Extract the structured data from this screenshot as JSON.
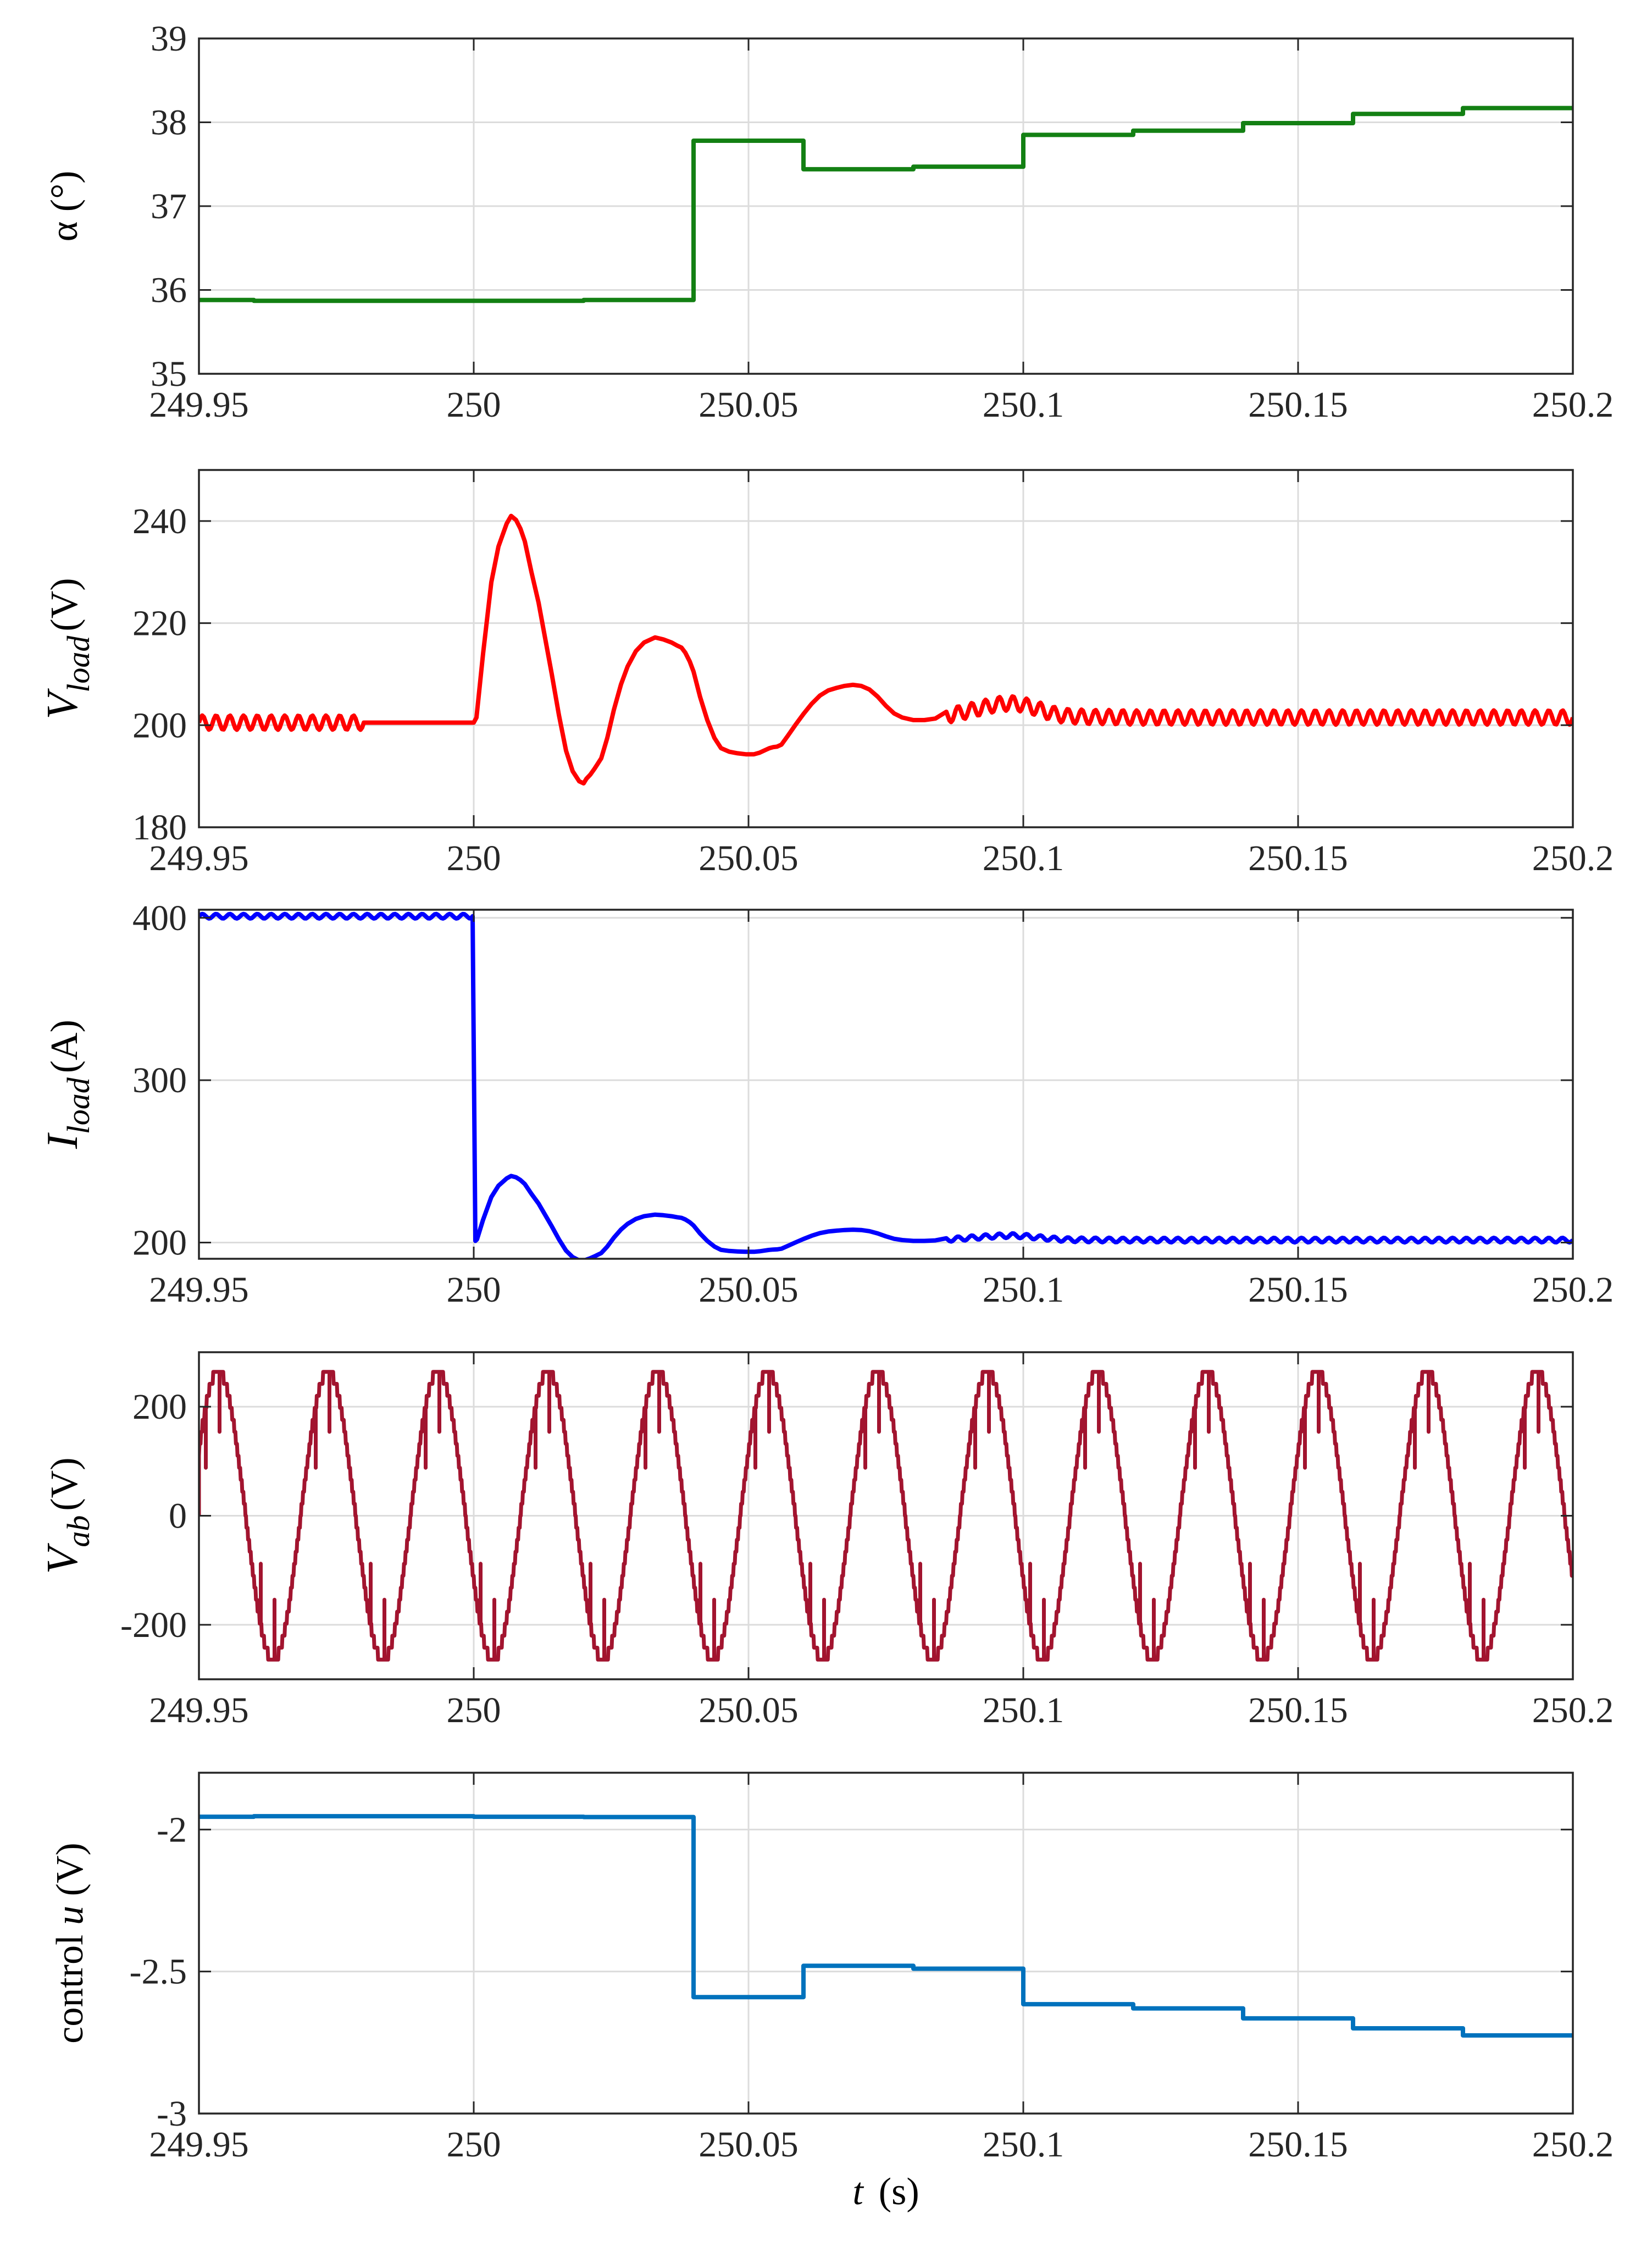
{
  "chart_data": [
    {
      "type": "line",
      "ylabel": "α (°)",
      "xlim": [
        249.95,
        250.2
      ],
      "ylim": [
        35,
        39
      ],
      "xticks": [
        249.95,
        250,
        250.05,
        250.1,
        250.15,
        250.2
      ],
      "xtick_labels": [
        "249.95",
        "250",
        "250.05",
        "250.1",
        "250.15",
        "250.2"
      ],
      "yticks": [
        35,
        36,
        37,
        38,
        39
      ],
      "ytick_labels": [
        "35",
        "36",
        "37",
        "38",
        "39"
      ],
      "grid": true,
      "series": [
        {
          "color": "#138013",
          "kind": "steps",
          "x": [
            249.95,
            249.96,
            249.98,
            250.0,
            250.02,
            250.04,
            250.06,
            250.08,
            250.1,
            250.12,
            250.14,
            250.16,
            250.18,
            250.2
          ],
          "values": [
            35.88,
            35.87,
            35.87,
            35.87,
            35.88,
            37.78,
            37.44,
            37.47,
            37.85,
            37.9,
            37.99,
            38.1,
            38.17,
            38.17
          ]
        }
      ]
    },
    {
      "type": "line",
      "ylabel": "V_load (V)",
      "ylabel_main": "V",
      "ylabel_sub": "load",
      "ylabel_unit": "(V)",
      "xlim": [
        249.95,
        250.2
      ],
      "ylim": [
        180,
        250
      ],
      "xticks": [
        249.95,
        250,
        250.05,
        250.1,
        250.15,
        250.2
      ],
      "xtick_labels": [
        "249.95",
        "250",
        "250.05",
        "250.1",
        "250.15",
        "250.2"
      ],
      "yticks": [
        180,
        200,
        220,
        240
      ],
      "ytick_labels": [
        "180",
        "200",
        "220",
        "240"
      ],
      "grid": true,
      "series": [
        {
          "color": "#ff0000",
          "kind": "line",
          "x": [
            249.95,
            249.98,
            250.0,
            250.0005,
            250.0017,
            250.0032,
            250.0045,
            250.0055,
            250.006,
            250.0068,
            250.0077,
            250.0085,
            250.0093,
            250.0105,
            250.0118,
            250.013,
            250.0142,
            250.0155,
            250.0168,
            250.018,
            250.0192,
            250.02,
            250.0205,
            250.0212,
            250.022,
            250.0226,
            250.0232,
            250.0243,
            250.0255,
            250.0268,
            250.028,
            250.0295,
            250.031,
            250.033,
            250.0345,
            250.036,
            250.037,
            250.0378,
            250.0385,
            250.0393,
            250.04,
            250.0412,
            250.0425,
            250.0438,
            250.045,
            250.0465,
            250.048,
            250.0495,
            250.051,
            250.052,
            250.053,
            250.0538,
            250.0545,
            250.0552,
            250.056,
            250.0572,
            250.0585,
            250.06,
            250.0615,
            250.063,
            250.0645,
            250.066,
            250.0675,
            250.069,
            250.0705,
            250.072,
            250.0735,
            250.075,
            250.0765,
            250.078,
            250.08,
            250.082,
            250.084,
            250.086,
            250.088,
            250.09,
            250.092,
            250.094,
            250.096,
            250.098,
            250.1,
            250.102,
            250.104,
            250.106,
            250.108,
            250.11,
            250.112,
            250.115,
            250.12,
            250.13,
            250.15,
            250.17,
            250.2
          ],
          "values": [
            200.5,
            200.5,
            200.5,
            201.5,
            214,
            228,
            235,
            238,
            239.5,
            241,
            240.2,
            238.5,
            236,
            230,
            224,
            217,
            210,
            202,
            195,
            191,
            189,
            188.6,
            189.5,
            190.3,
            191.5,
            192.5,
            193.5,
            197.5,
            203,
            208,
            211.5,
            214.5,
            216.2,
            217.2,
            216.8,
            216.2,
            215.6,
            215.2,
            214.2,
            212.5,
            210.5,
            205.5,
            201,
            197.5,
            195.5,
            194.8,
            194.5,
            194.3,
            194.3,
            194.6,
            195.1,
            195.5,
            195.7,
            195.8,
            196.2,
            198,
            200,
            202.2,
            204.2,
            205.8,
            206.8,
            207.3,
            207.7,
            207.9,
            207.7,
            207,
            205.6,
            203.8,
            202.3,
            201.5,
            201,
            201,
            201.3,
            201.8,
            202.3,
            202.8,
            203.3,
            203.8,
            204.2,
            204.3,
            204,
            203.4,
            202.7,
            202.1,
            201.8,
            201.7,
            201.6,
            201.6,
            201.5,
            201.5,
            201.5,
            201.5,
            201.5
          ]
        }
      ]
    },
    {
      "type": "line",
      "ylabel": "I_load (A)",
      "ylabel_main": "I",
      "ylabel_sub": "load",
      "ylabel_unit": "(A)",
      "xlim": [
        249.95,
        250.2
      ],
      "ylim": [
        190,
        405
      ],
      "xticks": [
        249.95,
        250,
        250.05,
        250.1,
        250.15,
        250.2
      ],
      "xtick_labels": [
        "249.95",
        "250",
        "250.05",
        "250.1",
        "250.15",
        "250.2"
      ],
      "yticks": [
        200,
        300,
        400
      ],
      "ytick_labels": [
        "200",
        "300",
        "400"
      ],
      "grid": true,
      "series": [
        {
          "color": "#0000ff",
          "kind": "line",
          "x": [
            249.95,
            249.98,
            249.9998,
            250.0003,
            250.0006,
            250.0017,
            250.0032,
            250.0045,
            250.0055,
            250.006,
            250.0068,
            250.0077,
            250.0085,
            250.0093,
            250.0105,
            250.0118,
            250.013,
            250.0142,
            250.0155,
            250.0168,
            250.018,
            250.0192,
            250.02,
            250.0205,
            250.0212,
            250.022,
            250.0226,
            250.0232,
            250.0243,
            250.0255,
            250.0268,
            250.028,
            250.0295,
            250.031,
            250.033,
            250.0345,
            250.036,
            250.037,
            250.0378,
            250.0385,
            250.0393,
            250.04,
            250.0412,
            250.0425,
            250.0438,
            250.045,
            250.0465,
            250.048,
            250.0495,
            250.051,
            250.052,
            250.053,
            250.0538,
            250.0545,
            250.0552,
            250.056,
            250.0572,
            250.0585,
            250.06,
            250.0615,
            250.063,
            250.0645,
            250.066,
            250.0675,
            250.069,
            250.0705,
            250.072,
            250.0735,
            250.075,
            250.0765,
            250.078,
            250.08,
            250.082,
            250.084,
            250.086,
            250.088,
            250.09,
            250.092,
            250.094,
            250.096,
            250.098,
            250.1,
            250.102,
            250.104,
            250.106,
            250.108,
            250.11,
            250.112,
            250.115,
            250.12,
            250.13,
            250.15,
            250.17,
            250.2
          ],
          "values": [
            401,
            401,
            401,
            201,
            202,
            214,
            228,
            235,
            238,
            239.5,
            241,
            240.2,
            238.5,
            236,
            230,
            224,
            217,
            210,
            202,
            195,
            191,
            189,
            188.6,
            189.5,
            190.3,
            191.5,
            192.5,
            193.5,
            197.5,
            203,
            208,
            211.5,
            214.5,
            216.2,
            217.2,
            216.8,
            216.2,
            215.6,
            215.2,
            214.2,
            212.5,
            210.5,
            205.5,
            201,
            197.5,
            195.5,
            194.8,
            194.5,
            194.3,
            194.3,
            194.6,
            195.1,
            195.5,
            195.7,
            195.8,
            196.2,
            198,
            200,
            202.2,
            204.2,
            205.8,
            206.8,
            207.3,
            207.7,
            207.9,
            207.7,
            207,
            205.6,
            203.8,
            202.3,
            201.5,
            201,
            201,
            201.3,
            201.8,
            202.3,
            202.8,
            203.3,
            203.8,
            204.2,
            204.3,
            204,
            203.4,
            202.7,
            202.1,
            201.8,
            201.7,
            201.6,
            201.6,
            201.5,
            201.5,
            201.5,
            201.5,
            201.5
          ]
        }
      ]
    },
    {
      "type": "line",
      "ylabel": "V_ab (V)",
      "ylabel_main": "V",
      "ylabel_sub": "ab",
      "ylabel_unit": "(V)",
      "xlim": [
        249.95,
        250.2
      ],
      "ylim": [
        -300,
        300
      ],
      "xticks": [
        249.95,
        250,
        250.05,
        250.1,
        250.15,
        250.2
      ],
      "xtick_labels": [
        "249.95",
        "250",
        "250.05",
        "250.1",
        "250.15",
        "250.2"
      ],
      "yticks": [
        -200,
        0,
        200
      ],
      "ytick_labels": [
        "-200",
        "0",
        "200"
      ],
      "grid": true,
      "series": [
        {
          "color": "#a2142f",
          "kind": "waveform",
          "amplitude": 265,
          "period_s": 0.02,
          "crest_times": [
            249.9535,
            249.9735,
            249.9935,
            250.0135,
            250.0335,
            250.0535,
            250.0735,
            250.0935,
            250.1135,
            250.1335,
            250.1535,
            250.1735,
            250.1935
          ],
          "trough_times": [
            249.9635,
            249.9835,
            250.0035,
            250.0235,
            250.0435,
            250.0635,
            250.0835,
            250.1035,
            250.1235,
            250.1435,
            250.1635,
            250.1835
          ],
          "peak_max": 300,
          "peak_min": -300
        }
      ]
    },
    {
      "type": "line",
      "ylabel": "control u (V)",
      "ylabel_main": "control ",
      "ylabel_italic": "u",
      "ylabel_unit": " (V)",
      "xlabel": "t (s)",
      "xlabel_italic": "t",
      "xlabel_unit": "(s)",
      "xlim": [
        249.95,
        250.2
      ],
      "ylim": [
        -3,
        -1.8
      ],
      "xticks": [
        249.95,
        250,
        250.05,
        250.1,
        250.15,
        250.2
      ],
      "xtick_labels": [
        "249.95",
        "250",
        "250.05",
        "250.1",
        "250.15",
        "250.2"
      ],
      "yticks": [
        -3,
        -2.5,
        -2
      ],
      "ytick_labels": [
        "-3",
        "-2.5",
        "-2"
      ],
      "grid": true,
      "series": [
        {
          "color": "#0072bd",
          "kind": "steps",
          "x": [
            249.95,
            249.96,
            249.98,
            250.0,
            250.02,
            250.04,
            250.06,
            250.08,
            250.1,
            250.12,
            250.14,
            250.16,
            250.18,
            250.2
          ],
          "values": [
            -1.955,
            -1.953,
            -1.953,
            -1.955,
            -1.956,
            -2.59,
            -2.48,
            -2.49,
            -2.615,
            -2.63,
            -2.665,
            -2.7,
            -2.725,
            -2.725
          ]
        }
      ]
    }
  ]
}
